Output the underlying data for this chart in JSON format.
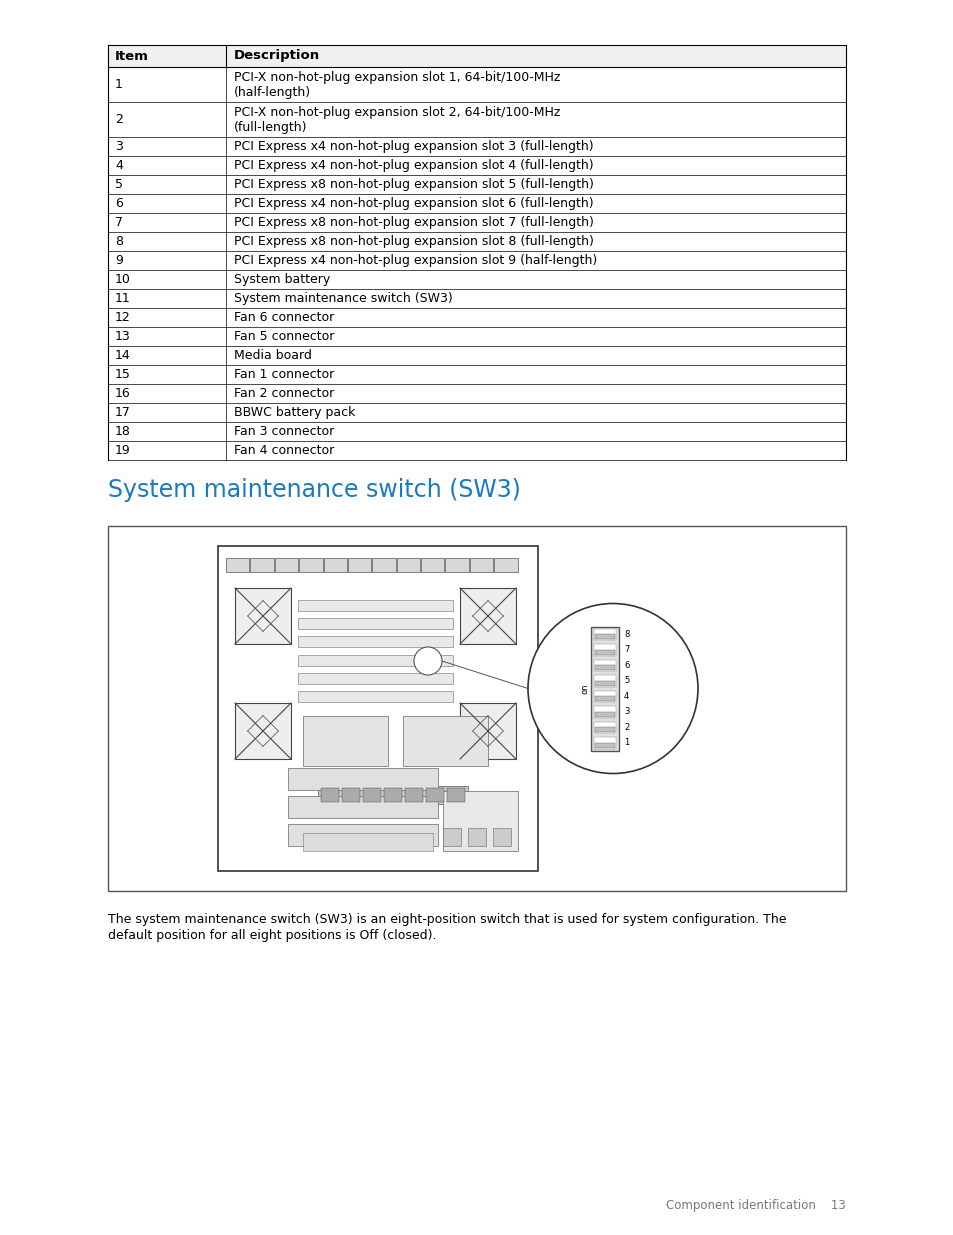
{
  "title": "System maintenance switch (SW3)",
  "title_color": "#1a7abf",
  "background_color": "#ffffff",
  "table_header": [
    "Item",
    "Description"
  ],
  "table_rows": [
    [
      "1",
      "PCI-X non-hot-plug expansion slot 1, 64-bit/100-MHz\n(half-length)"
    ],
    [
      "2",
      "PCI-X non-hot-plug expansion slot 2, 64-bit/100-MHz\n(full-length)"
    ],
    [
      "3",
      "PCI Express x4 non-hot-plug expansion slot 3 (full-length)"
    ],
    [
      "4",
      "PCI Express x4 non-hot-plug expansion slot 4 (full-length)"
    ],
    [
      "5",
      "PCI Express x8 non-hot-plug expansion slot 5 (full-length)"
    ],
    [
      "6",
      "PCI Express x4 non-hot-plug expansion slot 6 (full-length)"
    ],
    [
      "7",
      "PCI Express x8 non-hot-plug expansion slot 7 (full-length)"
    ],
    [
      "8",
      "PCI Express x8 non-hot-plug expansion slot 8 (full-length)"
    ],
    [
      "9",
      "PCI Express x4 non-hot-plug expansion slot 9 (half-length)"
    ],
    [
      "10",
      "System battery"
    ],
    [
      "11",
      "System maintenance switch (SW3)"
    ],
    [
      "12",
      "Fan 6 connector"
    ],
    [
      "13",
      "Fan 5 connector"
    ],
    [
      "14",
      "Media board"
    ],
    [
      "15",
      "Fan 1 connector"
    ],
    [
      "16",
      "Fan 2 connector"
    ],
    [
      "17",
      "BBWC battery pack"
    ],
    [
      "18",
      "Fan 3 connector"
    ],
    [
      "19",
      "Fan 4 connector"
    ]
  ],
  "caption_line1": "The system maintenance switch (SW3) is an eight-position switch that is used for system configuration. The",
  "caption_line2": "default position for all eight positions is Off (closed).",
  "footer": "Component identification    13",
  "body_fontsize": 9,
  "header_fontsize": 9.5,
  "title_fontsize": 17
}
